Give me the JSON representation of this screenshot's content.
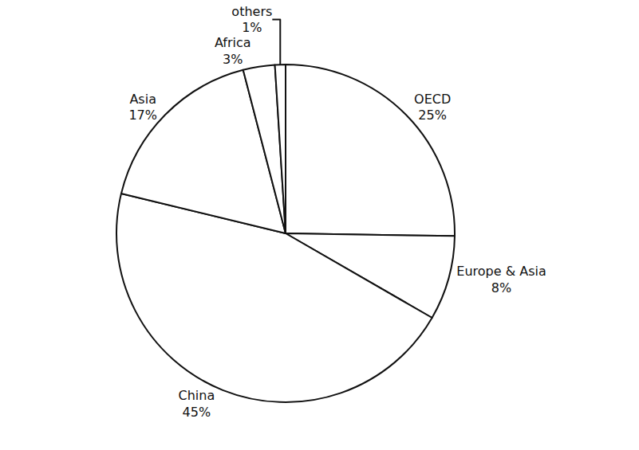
{
  "chart_data": {
    "type": "pie",
    "categories": [
      "OECD",
      "Europe & Asia",
      "China",
      "Asia",
      "Africa",
      "others"
    ],
    "values": [
      25,
      8,
      45,
      17,
      3,
      1
    ],
    "value_labels": [
      "25%",
      "8%",
      "45%",
      "17%",
      "3%",
      "1%"
    ],
    "color": "#ffffff",
    "data_labels": true
  }
}
